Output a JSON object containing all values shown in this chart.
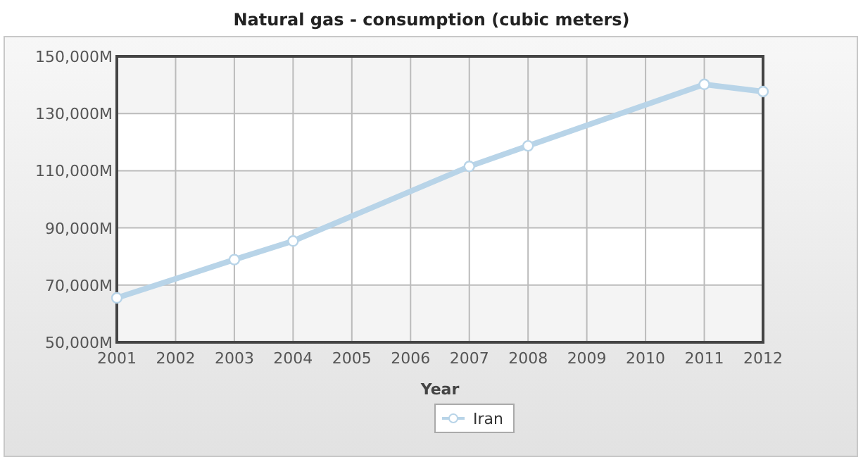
{
  "chart_data": {
    "type": "line",
    "title": "Natural gas - consumption (cubic meters)",
    "xlabel": "Year",
    "x": [
      2001,
      2003,
      2004,
      2007,
      2008,
      2011,
      2012
    ],
    "series": [
      {
        "name": "Iran",
        "color": "#b8d4e8",
        "values": [
          65500,
          78900,
          85400,
          111500,
          118700,
          140200,
          137700
        ]
      }
    ],
    "xlim": [
      2001,
      2012
    ],
    "xticks": [
      2001,
      2002,
      2003,
      2004,
      2005,
      2006,
      2007,
      2008,
      2009,
      2010,
      2011,
      2012
    ],
    "ylim": [
      50000,
      150000
    ],
    "yticks": [
      {
        "value": 50000,
        "label": "50,000M"
      },
      {
        "value": 70000,
        "label": "70,000M"
      },
      {
        "value": 90000,
        "label": "90,000M"
      },
      {
        "value": 110000,
        "label": "110,000M"
      },
      {
        "value": 130000,
        "label": "130,000M"
      },
      {
        "value": 150000,
        "label": "150,000M"
      }
    ],
    "grid": true,
    "legend": "bottom",
    "marker": "circle",
    "line_style": "solid"
  }
}
